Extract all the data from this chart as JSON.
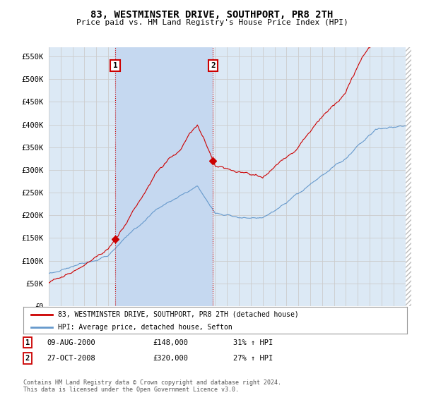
{
  "title": "83, WESTMINSTER DRIVE, SOUTHPORT, PR8 2TH",
  "subtitle": "Price paid vs. HM Land Registry's House Price Index (HPI)",
  "ylim": [
    0,
    570000
  ],
  "yticks": [
    0,
    50000,
    100000,
    150000,
    200000,
    250000,
    300000,
    350000,
    400000,
    450000,
    500000,
    550000
  ],
  "ytick_labels": [
    "£0",
    "£50K",
    "£100K",
    "£150K",
    "£200K",
    "£250K",
    "£300K",
    "£350K",
    "£400K",
    "£450K",
    "£500K",
    "£550K"
  ],
  "background_color": "#ffffff",
  "plot_bg_color": "#dce9f5",
  "grid_color": "#cccccc",
  "highlight_color": "#c5d8f0",
  "transaction1_date": 2000.6,
  "transaction1_price": 148000,
  "transaction2_date": 2008.82,
  "transaction2_price": 320000,
  "legend_red_label": "83, WESTMINSTER DRIVE, SOUTHPORT, PR8 2TH (detached house)",
  "legend_blue_label": "HPI: Average price, detached house, Sefton",
  "annotation1_date": "09-AUG-2000",
  "annotation1_price": "£148,000",
  "annotation1_hpi": "31% ↑ HPI",
  "annotation2_date": "27-OCT-2008",
  "annotation2_price": "£320,000",
  "annotation2_hpi": "27% ↑ HPI",
  "footer": "Contains HM Land Registry data © Crown copyright and database right 2024.\nThis data is licensed under the Open Government Licence v3.0.",
  "red_color": "#cc0000",
  "blue_color": "#6699cc",
  "hatch_color": "#bbbbbb",
  "xlim_start": 1995,
  "xlim_end": 2025.5
}
